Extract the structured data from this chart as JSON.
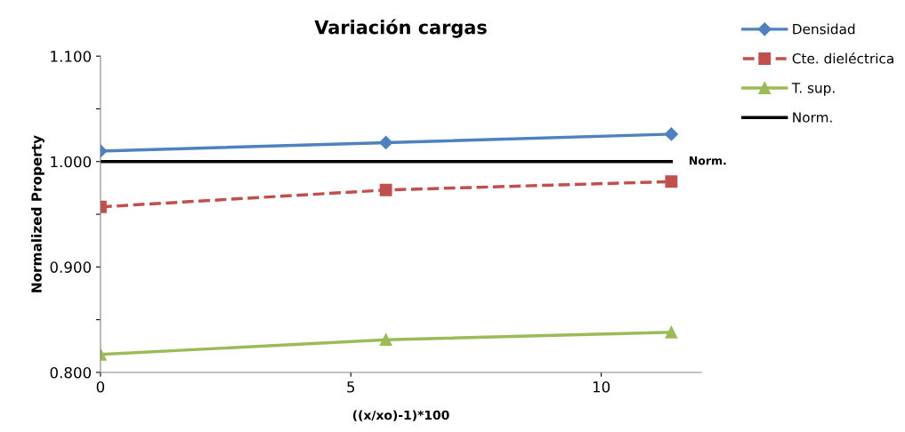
{
  "chart_data": {
    "type": "line",
    "title": "Variación cargas",
    "xlabel": "((x/xo)-1)*100",
    "ylabel": "Normalized Property",
    "x": [
      0,
      5.7,
      11.4
    ],
    "series": [
      {
        "name": "Densidad",
        "color": "#4f81bd",
        "values": [
          1.01,
          1.018,
          1.026
        ],
        "marker": "diamond",
        "line_style": "solid"
      },
      {
        "name": "Cte. dieléctrica",
        "color": "#c0504d",
        "values": [
          0.957,
          0.973,
          0.981
        ],
        "marker": "square",
        "line_style": "dashed"
      },
      {
        "name": "T. sup.",
        "color": "#9bbb59",
        "values": [
          0.817,
          0.831,
          0.838
        ],
        "marker": "triangle",
        "line_style": "solid"
      },
      {
        "name": "Norm.",
        "color": "#000000",
        "values": [
          1.0,
          1.0,
          1.0
        ],
        "marker": "none",
        "line_style": "solid"
      }
    ],
    "annotations": [
      {
        "text": "Norm.",
        "x": 11.4,
        "y": 1.0
      }
    ],
    "xlim": [
      0,
      12
    ],
    "xticks": [
      0,
      5,
      10
    ],
    "ylim": [
      0.8,
      1.1
    ],
    "yticks": [
      {
        "value": 0.8,
        "label": "0.800"
      },
      {
        "value": 0.85,
        "label": null
      },
      {
        "value": 0.9,
        "label": "0.900"
      },
      {
        "value": 0.95,
        "label": null
      },
      {
        "value": 1.0,
        "label": "1.000"
      },
      {
        "value": 1.05,
        "label": null
      },
      {
        "value": 1.1,
        "label": "1.100"
      }
    ],
    "grid": false,
    "legend": "top right"
  }
}
